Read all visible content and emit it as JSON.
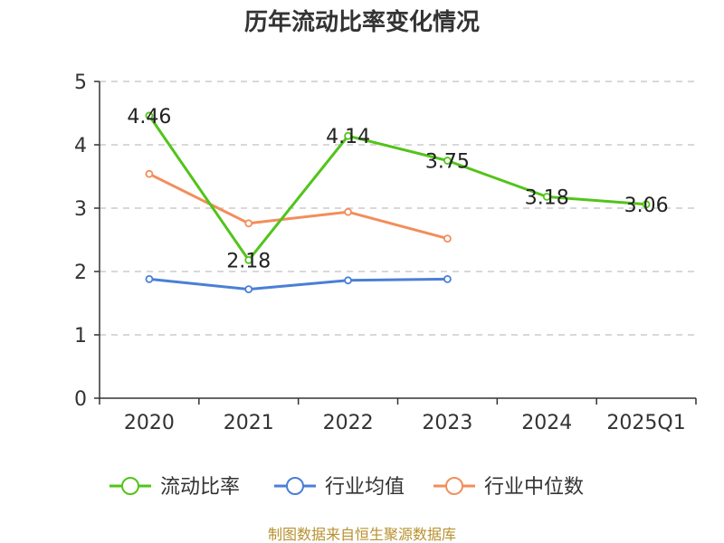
{
  "chart_data": {
    "type": "line",
    "title": "历年流动比率变化情况",
    "categories": [
      "2020",
      "2021",
      "2022",
      "2023",
      "2024",
      "2025Q1"
    ],
    "ylim": [
      0,
      5
    ],
    "yticks": [
      "0",
      "1",
      "2",
      "3",
      "4",
      "5"
    ],
    "grid": true,
    "legend_position": "bottom",
    "series": [
      {
        "name": "流动比率",
        "color": "#52c41a",
        "values": [
          4.46,
          2.18,
          4.14,
          3.75,
          3.18,
          3.06
        ],
        "labels": [
          "4.46",
          "2.18",
          "4.14",
          "3.75",
          "3.18",
          "3.06"
        ]
      },
      {
        "name": "行业均值",
        "color": "#4a7fd6",
        "values": [
          1.88,
          1.72,
          1.86,
          1.88,
          null,
          null
        ]
      },
      {
        "name": "行业中位数",
        "color": "#f28e5b",
        "values": [
          3.54,
          2.76,
          2.94,
          2.52,
          null,
          null
        ]
      }
    ]
  },
  "source": "制图数据来自恒生聚源数据库"
}
